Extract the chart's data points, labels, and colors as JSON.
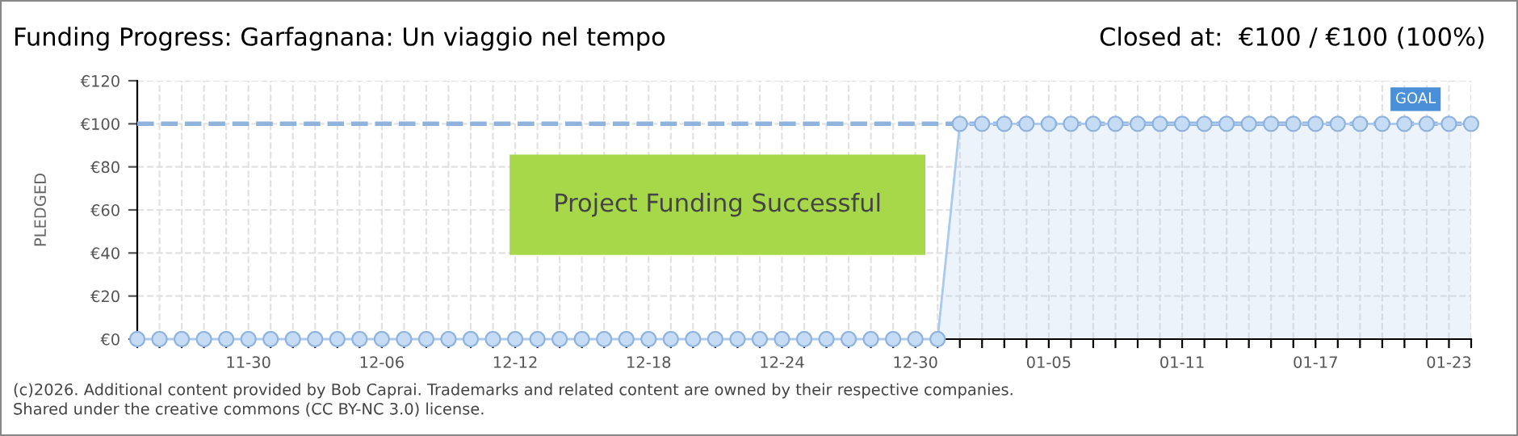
{
  "chart_data": {
    "type": "area",
    "title": "Funding Progress: Garfagnana: Un viaggio nel tempo",
    "subtitle": "Closed at:  €100 / €100 (100%)",
    "ylabel": "PLEDGED",
    "categories": [
      null,
      null,
      null,
      null,
      null,
      "11-30",
      null,
      null,
      null,
      null,
      null,
      "12-06",
      null,
      null,
      null,
      null,
      null,
      "12-12",
      null,
      null,
      null,
      null,
      null,
      "12-18",
      null,
      null,
      null,
      null,
      null,
      "12-24",
      null,
      null,
      null,
      null,
      null,
      "12-30",
      null,
      null,
      null,
      null,
      null,
      "01-05",
      null,
      null,
      null,
      null,
      null,
      "01-11",
      null,
      null,
      null,
      null,
      null,
      "01-17",
      null,
      null,
      null,
      null,
      null,
      "01-23",
      null
    ],
    "series": [
      {
        "color": "#a9c9ee",
        "values": [
          0,
          0,
          0,
          0,
          0,
          0,
          0,
          0,
          0,
          0,
          0,
          0,
          0,
          0,
          0,
          0,
          0,
          0,
          0,
          0,
          0,
          0,
          0,
          0,
          0,
          0,
          0,
          0,
          0,
          0,
          0,
          0,
          0,
          0,
          0,
          0,
          0,
          100,
          100,
          100,
          100,
          100,
          100,
          100,
          100,
          100,
          100,
          100,
          100,
          100,
          100,
          100,
          100,
          100,
          100,
          100,
          100,
          100,
          100,
          100,
          100
        ]
      }
    ],
    "ylim": [
      0,
      120
    ],
    "yticks": [
      {
        "value": 0,
        "label": "€0"
      },
      {
        "value": 20,
        "label": "€20"
      },
      {
        "value": 40,
        "label": "€40"
      },
      {
        "value": 60,
        "label": "€60"
      },
      {
        "value": 80,
        "label": "€80"
      },
      {
        "value": 100,
        "label": "€100"
      },
      {
        "value": 120,
        "label": "€120"
      }
    ],
    "ref_lines": [
      {
        "axis": "y",
        "value": 100,
        "label": "GOAL",
        "color": "#8fb3dd",
        "line_style": "dashed"
      }
    ],
    "marker": "circle",
    "grid": true,
    "annotations": [
      "Project Funding Successful",
      "(c)2026. Additional content provided by Bob Caprai. Trademarks and related content are owned by their respective companies.",
      "Shared under the creative commons (CC BY-NC 3.0) license."
    ]
  }
}
